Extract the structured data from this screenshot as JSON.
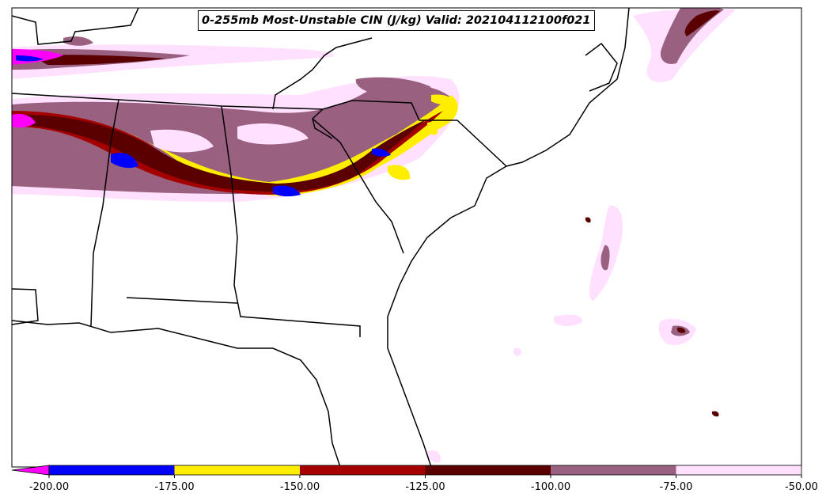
{
  "title": "0-255mb Most-Unstable CIN (J/kg) Valid: 202104112100f021",
  "colorbar": {
    "ticks": [
      "-200.00",
      "-175.00",
      "-150.00",
      "-125.00",
      "-100.00",
      "-75.00",
      "-50.00"
    ],
    "bins": [
      {
        "from": -200,
        "to": -175,
        "color": "#0000ff"
      },
      {
        "from": -175,
        "to": -150,
        "color": "#ffee00"
      },
      {
        "from": -150,
        "to": -125,
        "color": "#a50000"
      },
      {
        "from": -125,
        "to": -100,
        "color": "#5a0000"
      },
      {
        "from": -100,
        "to": -75,
        "color": "#996080"
      },
      {
        "from": -75,
        "to": -50,
        "color": "#ffe0ff"
      }
    ],
    "extend_min_color": "#ff00ff"
  }
}
